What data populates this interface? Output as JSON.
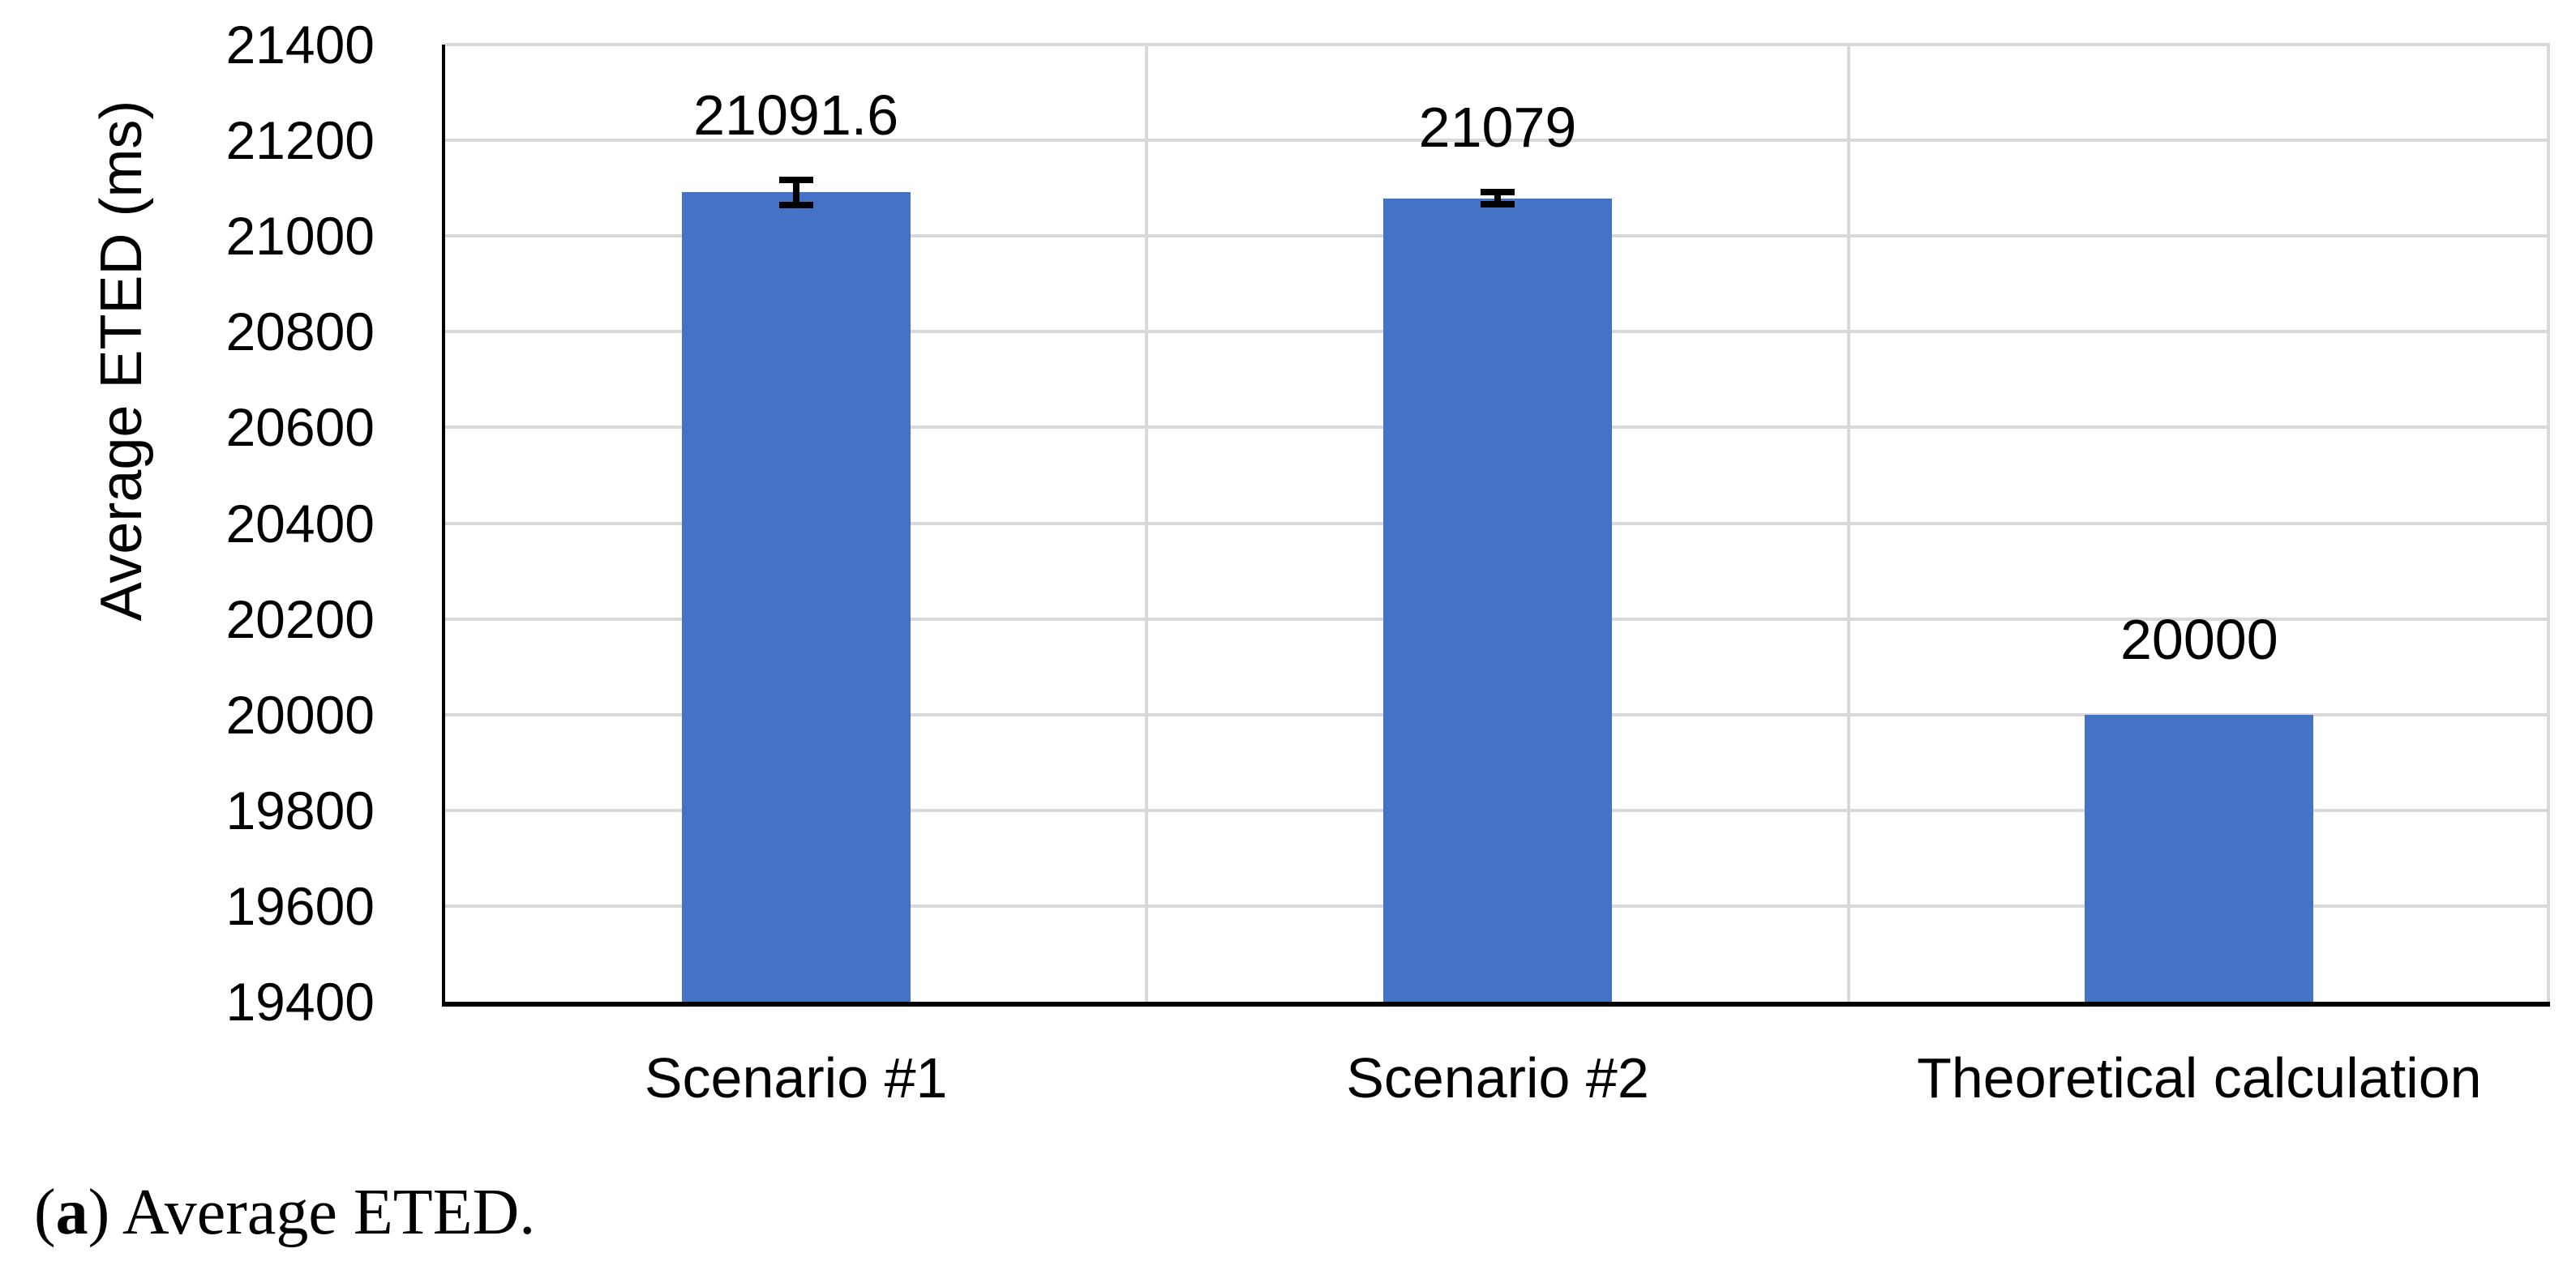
{
  "chart_data": {
    "type": "bar",
    "title": "",
    "categories": [
      "Scenario #1",
      "Scenario #2",
      "Theoretical calculation"
    ],
    "values": [
      21091.6,
      21079,
      20000
    ],
    "data_labels": [
      "21091.6",
      "21079",
      "20000"
    ],
    "error_bars_ms": [
      33,
      20,
      0
    ],
    "ylabel": "Average ETED (ms)",
    "xlabel": "",
    "ylim": [
      19400,
      21400
    ],
    "ytick_interval": 200,
    "yticks": [
      "21400",
      "21200",
      "21000",
      "20800",
      "20600",
      "20400",
      "20200",
      "20000",
      "19800",
      "19600",
      "19400"
    ],
    "legend": "none",
    "grid": "horizontal gridlines plus vertical category separators and right border",
    "bar_color": "#4472C4",
    "gridline_color": "#D9D9D9",
    "axis_color": "#000000",
    "text_color": "#000000"
  },
  "caption": {
    "open_paren": "(",
    "letter": "a",
    "close_paren": ")",
    "text": " Average ETED."
  }
}
